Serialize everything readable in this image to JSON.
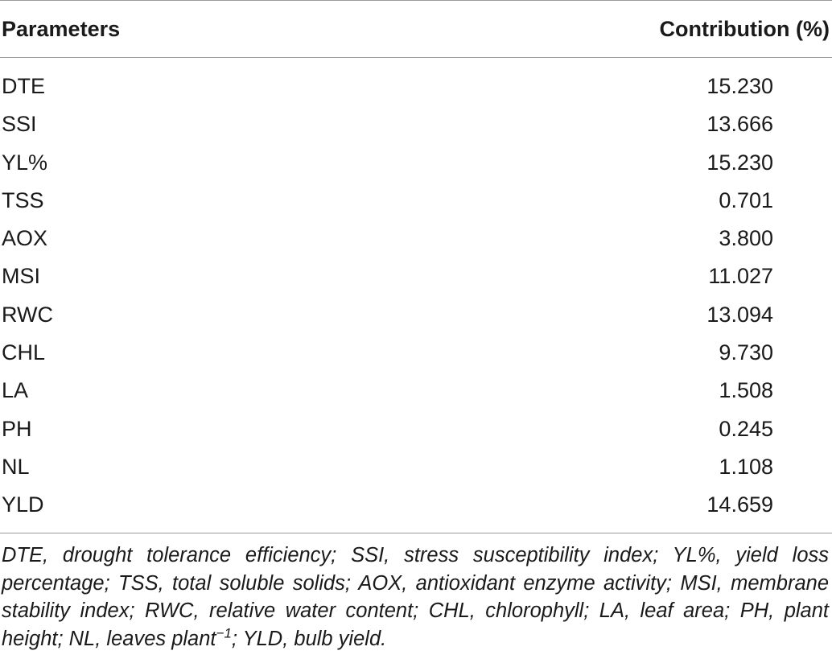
{
  "table": {
    "header": {
      "parameters": "Parameters",
      "contribution": "Contribution (%)"
    },
    "rows": [
      {
        "parameter": "DTE",
        "contribution": "15.230"
      },
      {
        "parameter": "SSI",
        "contribution": "13.666"
      },
      {
        "parameter": "YL%",
        "contribution": "15.230"
      },
      {
        "parameter": "TSS",
        "contribution": "0.701"
      },
      {
        "parameter": "AOX",
        "contribution": "3.800"
      },
      {
        "parameter": "MSI",
        "contribution": "11.027"
      },
      {
        "parameter": "RWC",
        "contribution": "13.094"
      },
      {
        "parameter": "CHL",
        "contribution": "9.730"
      },
      {
        "parameter": "LA",
        "contribution": "1.508"
      },
      {
        "parameter": "PH",
        "contribution": "0.245"
      },
      {
        "parameter": "NL",
        "contribution": "1.108"
      },
      {
        "parameter": "YLD",
        "contribution": "14.659"
      }
    ]
  },
  "footnote": {
    "text_before_sup": "DTE, drought tolerance efficiency; SSI, stress susceptibility index; YL%, yield loss percentage; TSS, total soluble solids; AOX, antioxidant enzyme activity; MSI, membrane stability index; RWC, relative water content; CHL, chlorophyll; LA, leaf area; PH, plant height; NL, leaves plant",
    "superscript": "−1",
    "text_after_sup": "; YLD, bulb yield."
  }
}
